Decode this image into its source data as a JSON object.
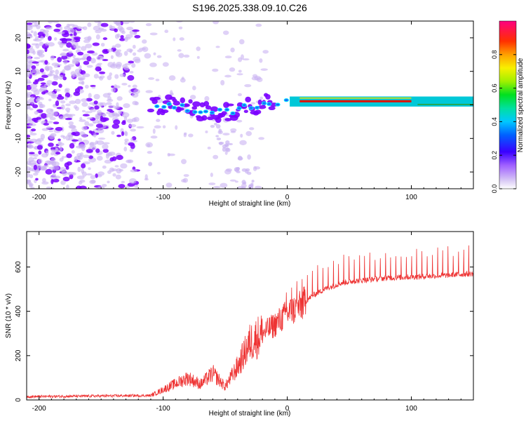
{
  "title": "S196.2025.338.09.10.C26",
  "colors": {
    "snr_line": "#ee3333",
    "frame": "#000000",
    "spec_low": "#7a00ff",
    "spec_faint": "#c9b3f2"
  },
  "chart_data": [
    {
      "type": "heatmap",
      "name": "spectrogram",
      "xlabel": "Height of straight line (km)",
      "ylabel": "Frequency (Hz)",
      "xlim": [
        -210,
        150
      ],
      "ylim": [
        -25,
        25
      ],
      "xticks": [
        -200,
        -100,
        0,
        100
      ],
      "xtick_labels": [
        "-200",
        "-100",
        "0",
        "100"
      ],
      "yticks": [
        -20,
        -10,
        0,
        10,
        20
      ],
      "ytick_labels": [
        "-20",
        "-10",
        "0",
        "10",
        "20"
      ],
      "colorbar": {
        "label": "Normalized spectral amplitude",
        "range": [
          0,
          1
        ],
        "ticks": [
          0.0,
          0.2,
          0.4,
          0.6,
          0.8
        ],
        "tick_labels": [
          "0.0",
          "0.2",
          "0.4",
          "0.6",
          "0.8"
        ]
      },
      "features": {
        "noise_scatter_x_range": [
          -210,
          -15
        ],
        "signal_track": [
          {
            "x": -100,
            "freq": 0.0
          },
          {
            "x": -80,
            "freq": -1.0
          },
          {
            "x": -65,
            "freq": -2.0
          },
          {
            "x": -50,
            "freq": -2.5
          },
          {
            "x": -35,
            "freq": -1.0
          },
          {
            "x": -20,
            "freq": 0.5
          },
          {
            "x": 0,
            "freq": 1.0
          },
          {
            "x": 20,
            "freq": 1.0
          },
          {
            "x": 100,
            "freq": 1.0
          },
          {
            "x": 105,
            "freq": 0.0
          },
          {
            "x": 150,
            "freq": 0.0
          }
        ],
        "peak_band_x_range": [
          10,
          100
        ],
        "peak_band_amplitude": 0.95
      }
    },
    {
      "type": "line",
      "name": "snr",
      "xlabel": "Height of straight line (km)",
      "ylabel": "SNR (10 * v/v)",
      "xlim": [
        -210,
        150
      ],
      "ylim": [
        0,
        760
      ],
      "xticks": [
        -200,
        -100,
        0,
        100
      ],
      "xtick_labels": [
        "-200",
        "-100",
        "0",
        "100"
      ],
      "yticks": [
        0,
        200,
        400,
        600
      ],
      "ytick_labels": [
        "0",
        "200",
        "400",
        "600"
      ],
      "baseline_anchors": [
        {
          "x": -210,
          "y": 15
        },
        {
          "x": -110,
          "y": 20
        },
        {
          "x": -95,
          "y": 60
        },
        {
          "x": -80,
          "y": 100
        },
        {
          "x": -70,
          "y": 70
        },
        {
          "x": -60,
          "y": 120
        },
        {
          "x": -50,
          "y": 60
        },
        {
          "x": -40,
          "y": 150
        },
        {
          "x": -30,
          "y": 260
        },
        {
          "x": -20,
          "y": 300
        },
        {
          "x": -10,
          "y": 340
        },
        {
          "x": 0,
          "y": 390
        },
        {
          "x": 10,
          "y": 420
        },
        {
          "x": 20,
          "y": 470
        },
        {
          "x": 30,
          "y": 500
        },
        {
          "x": 45,
          "y": 530
        },
        {
          "x": 60,
          "y": 540
        },
        {
          "x": 80,
          "y": 550
        },
        {
          "x": 100,
          "y": 555
        },
        {
          "x": 120,
          "y": 560
        },
        {
          "x": 150,
          "y": 570
        }
      ],
      "spike_interval_km": 4.2,
      "spike_height": 120
    }
  ]
}
